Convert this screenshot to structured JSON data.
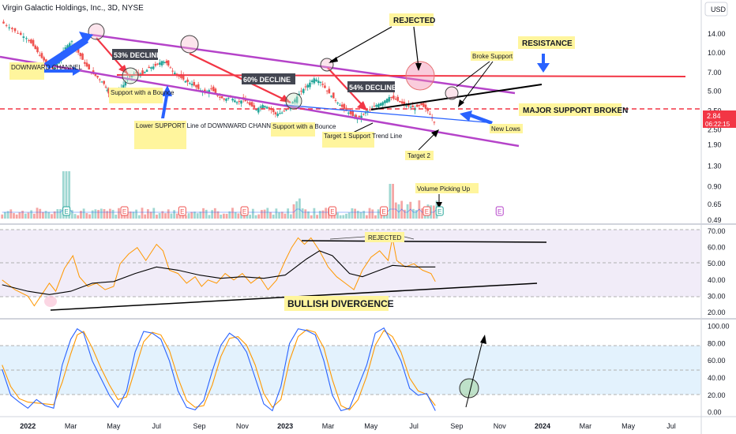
{
  "header": {
    "title": "Virgin Galactic Holdings, Inc., 3D, NYSE",
    "currency": "USD"
  },
  "price_tag": {
    "price": "2.84",
    "countdown": "06:22:15"
  },
  "colors": {
    "up": "#26a69a",
    "down": "#ef5350",
    "channel": "#b543c9",
    "resistance": "#f23645",
    "support_line": "#2962ff",
    "rsi": "#ff9800",
    "rsi_ma": "#000000",
    "stoch_k": "#2962ff",
    "stoch_d": "#ff9800",
    "annotation_bg": "#fff59d"
  },
  "annotations": {
    "downward_channel": "DOWNWARD CHANNEL",
    "support_bounce_1": "Support with a Bounce",
    "lower_support": "Lower SUPPORT Line of DOWNWARD CHANNEL",
    "support_bounce_2": "Support with a Bounce",
    "target1": "Target 1 Support Trend Line",
    "target2": "Target 2",
    "rejected_top": "REJECTED",
    "broke_support": "Broke Support",
    "resistance": "RESISTANCE",
    "major_support": "MAJOR SUPPORT BROKEN",
    "new_lows": "New Lows",
    "volume_picking": "Volume Picking Up",
    "decline1": "53% DECLINE",
    "decline2": "60% DECLINE",
    "decline3": "54% DECLINE",
    "rsi_rejected": "REJECTED",
    "bullish_div": "BULLISH DIVERGENCE",
    "earnings_marker": "E"
  },
  "chart_data": [
    {
      "name": "price",
      "type": "candlestick",
      "scale": "log",
      "x_unit": "month",
      "y_ticks": [
        14.0,
        10.0,
        7.0,
        5.0,
        3.5,
        2.5,
        1.9,
        1.3,
        0.9,
        0.65,
        0.49
      ],
      "x_ticks": [
        {
          "x": 0,
          "label": "2022"
        },
        {
          "x": 2,
          "label": "Mar"
        },
        {
          "x": 4,
          "label": "May"
        },
        {
          "x": 6,
          "label": "Jul"
        },
        {
          "x": 8,
          "label": "Sep"
        },
        {
          "x": 10,
          "label": "Nov"
        },
        {
          "x": 12,
          "label": "2023"
        },
        {
          "x": 14,
          "label": "Mar"
        },
        {
          "x": 16,
          "label": "May"
        },
        {
          "x": 18,
          "label": "Jul"
        },
        {
          "x": 20,
          "label": "Sep"
        },
        {
          "x": 22,
          "label": "Nov"
        },
        {
          "x": 24,
          "label": "2024"
        },
        {
          "x": 26,
          "label": "Mar"
        },
        {
          "x": 28,
          "label": "May"
        },
        {
          "x": 30,
          "label": "Jul"
        }
      ],
      "x_range": [
        -1.3,
        31.4
      ],
      "y_range": [
        0.47,
        20
      ],
      "close_points": [
        [
          -1.2,
          17.5
        ],
        [
          -0.8,
          15.8
        ],
        [
          -0.4,
          14.2
        ],
        [
          0.0,
          13.0
        ],
        [
          0.3,
          11.3
        ],
        [
          0.6,
          9.5
        ],
        [
          0.9,
          8.3
        ],
        [
          1.2,
          7.5
        ],
        [
          1.5,
          9.0
        ],
        [
          1.8,
          11.0
        ],
        [
          2.1,
          12.3
        ],
        [
          2.4,
          10.0
        ],
        [
          2.7,
          8.2
        ],
        [
          3.0,
          7.0
        ],
        [
          3.3,
          6.4
        ],
        [
          3.6,
          5.7
        ],
        [
          3.8,
          4.8
        ],
        [
          4.0,
          4.4
        ],
        [
          4.2,
          4.8
        ],
        [
          4.5,
          5.6
        ],
        [
          4.8,
          6.5
        ],
        [
          5.1,
          7.0
        ],
        [
          5.4,
          6.8
        ],
        [
          5.7,
          7.6
        ],
        [
          6.0,
          7.9
        ],
        [
          6.3,
          8.6
        ],
        [
          6.5,
          8.3
        ],
        [
          6.8,
          7.2
        ],
        [
          7.1,
          6.5
        ],
        [
          7.4,
          6.0
        ],
        [
          7.7,
          5.7
        ],
        [
          8.0,
          5.2
        ],
        [
          8.3,
          4.9
        ],
        [
          8.6,
          5.2
        ],
        [
          8.9,
          4.6
        ],
        [
          9.2,
          4.3
        ],
        [
          9.5,
          4.5
        ],
        [
          9.8,
          4.1
        ],
        [
          10.1,
          4.3
        ],
        [
          10.4,
          3.9
        ],
        [
          10.7,
          3.6
        ],
        [
          11.0,
          3.9
        ],
        [
          11.3,
          3.7
        ],
        [
          11.6,
          3.3
        ],
        [
          11.9,
          3.4
        ],
        [
          12.2,
          3.7
        ],
        [
          12.5,
          4.3
        ],
        [
          12.8,
          5.0
        ],
        [
          13.1,
          5.6
        ],
        [
          13.4,
          6.3
        ],
        [
          13.7,
          5.9
        ],
        [
          14.0,
          5.0
        ],
        [
          14.3,
          4.4
        ],
        [
          14.6,
          3.9
        ],
        [
          14.9,
          3.5
        ],
        [
          15.2,
          3.2
        ],
        [
          15.4,
          3.05
        ],
        [
          15.7,
          3.3
        ],
        [
          16.0,
          3.6
        ],
        [
          16.3,
          3.9
        ],
        [
          16.6,
          4.1
        ],
        [
          16.9,
          4.5
        ],
        [
          17.2,
          4.3
        ],
        [
          17.5,
          4.0
        ],
        [
          17.8,
          3.8
        ],
        [
          18.1,
          3.7
        ],
        [
          18.4,
          3.9
        ],
        [
          18.7,
          3.5
        ],
        [
          19.0,
          2.84
        ]
      ],
      "volume_note": "volume spike near Jun 2023"
    },
    {
      "name": "RSI",
      "type": "line",
      "y_ticks": [
        70.0,
        60.0,
        50.0,
        40.0,
        30.0,
        20.0
      ],
      "y_range": [
        17,
        73
      ],
      "band": [
        30,
        70
      ],
      "series_points": [
        [
          -1.2,
          40
        ],
        [
          -0.6,
          34
        ],
        [
          0.0,
          30
        ],
        [
          0.3,
          24
        ],
        [
          0.6,
          30
        ],
        [
          1.0,
          38
        ],
        [
          1.3,
          33
        ],
        [
          1.7,
          47
        ],
        [
          2.1,
          55
        ],
        [
          2.4,
          42
        ],
        [
          2.8,
          36
        ],
        [
          3.2,
          38
        ],
        [
          3.6,
          34
        ],
        [
          4.0,
          36
        ],
        [
          4.3,
          50
        ],
        [
          4.7,
          56
        ],
        [
          5.1,
          60
        ],
        [
          5.5,
          52
        ],
        [
          6.0,
          62
        ],
        [
          6.3,
          58
        ],
        [
          6.6,
          46
        ],
        [
          7.0,
          44
        ],
        [
          7.4,
          38
        ],
        [
          7.8,
          42
        ],
        [
          8.1,
          36
        ],
        [
          8.4,
          40
        ],
        [
          8.8,
          38
        ],
        [
          9.2,
          44
        ],
        [
          9.6,
          40
        ],
        [
          10.0,
          44
        ],
        [
          10.4,
          38
        ],
        [
          10.8,
          42
        ],
        [
          11.2,
          34
        ],
        [
          11.6,
          40
        ],
        [
          12.0,
          52
        ],
        [
          12.3,
          60
        ],
        [
          12.6,
          66
        ],
        [
          12.9,
          62
        ],
        [
          13.2,
          66
        ],
        [
          13.6,
          58
        ],
        [
          14.0,
          48
        ],
        [
          14.4,
          42
        ],
        [
          14.8,
          38
        ],
        [
          15.2,
          34
        ],
        [
          15.6,
          46
        ],
        [
          16.0,
          54
        ],
        [
          16.4,
          58
        ],
        [
          16.8,
          52
        ],
        [
          17.0,
          66
        ],
        [
          17.2,
          52
        ],
        [
          17.6,
          48
        ],
        [
          18.0,
          50
        ],
        [
          18.4,
          46
        ],
        [
          18.8,
          44
        ],
        [
          19.0,
          39
        ]
      ],
      "ma_points": [
        [
          -1.2,
          37
        ],
        [
          0.0,
          33
        ],
        [
          1.0,
          31
        ],
        [
          2.0,
          33
        ],
        [
          3.0,
          38
        ],
        [
          4.0,
          39
        ],
        [
          5.0,
          44
        ],
        [
          6.0,
          48
        ],
        [
          7.0,
          46
        ],
        [
          8.0,
          43
        ],
        [
          9.0,
          41
        ],
        [
          10.0,
          42
        ],
        [
          11.0,
          41
        ],
        [
          12.0,
          43
        ],
        [
          13.0,
          53
        ],
        [
          13.6,
          58
        ],
        [
          14.2,
          55
        ],
        [
          15.0,
          44
        ],
        [
          15.6,
          42
        ],
        [
          16.2,
          45
        ],
        [
          17.0,
          49
        ],
        [
          18.0,
          48
        ],
        [
          19.0,
          48
        ]
      ]
    },
    {
      "name": "Stochastic",
      "type": "line",
      "y_ticks": [
        100.0,
        80.0,
        60.0,
        40.0,
        20.0,
        0.0
      ],
      "y_range": [
        -3,
        105
      ],
      "band": [
        20,
        80
      ],
      "series": [
        {
          "name": "%K",
          "points": [
            [
              -1.2,
              50
            ],
            [
              -0.8,
              20
            ],
            [
              -0.4,
              12
            ],
            [
              0.0,
              5
            ],
            [
              0.4,
              15
            ],
            [
              0.8,
              8
            ],
            [
              1.2,
              5
            ],
            [
              1.6,
              55
            ],
            [
              2.0,
              85
            ],
            [
              2.3,
              97
            ],
            [
              2.6,
              92
            ],
            [
              3.0,
              60
            ],
            [
              3.4,
              40
            ],
            [
              3.8,
              20
            ],
            [
              4.2,
              6
            ],
            [
              4.6,
              25
            ],
            [
              5.0,
              70
            ],
            [
              5.4,
              94
            ],
            [
              5.8,
              92
            ],
            [
              6.2,
              85
            ],
            [
              6.6,
              60
            ],
            [
              7.0,
              25
            ],
            [
              7.4,
              6
            ],
            [
              7.8,
              3
            ],
            [
              8.2,
              14
            ],
            [
              8.6,
              48
            ],
            [
              9.0,
              78
            ],
            [
              9.4,
              92
            ],
            [
              9.8,
              85
            ],
            [
              10.2,
              70
            ],
            [
              10.6,
              40
            ],
            [
              11.0,
              10
            ],
            [
              11.4,
              2
            ],
            [
              11.8,
              30
            ],
            [
              12.2,
              80
            ],
            [
              12.6,
              97
            ],
            [
              13.0,
              95
            ],
            [
              13.4,
              90
            ],
            [
              13.8,
              60
            ],
            [
              14.2,
              20
            ],
            [
              14.6,
              2
            ],
            [
              15.0,
              5
            ],
            [
              15.4,
              30
            ],
            [
              15.8,
              55
            ],
            [
              16.2,
              92
            ],
            [
              16.6,
              98
            ],
            [
              17.0,
              80
            ],
            [
              17.4,
              60
            ],
            [
              17.8,
              28
            ],
            [
              18.2,
              20
            ],
            [
              18.6,
              22
            ],
            [
              19.0,
              2
            ]
          ]
        },
        {
          "name": "%D",
          "points": [
            [
              -1.2,
              55
            ],
            [
              -0.8,
              30
            ],
            [
              -0.4,
              16
            ],
            [
              0.0,
              12
            ],
            [
              0.4,
              11
            ],
            [
              0.8,
              10
            ],
            [
              1.2,
              9
            ],
            [
              1.6,
              35
            ],
            [
              2.0,
              68
            ],
            [
              2.3,
              90
            ],
            [
              2.6,
              94
            ],
            [
              3.0,
              75
            ],
            [
              3.4,
              52
            ],
            [
              3.8,
              32
            ],
            [
              4.2,
              15
            ],
            [
              4.6,
              18
            ],
            [
              5.0,
              50
            ],
            [
              5.4,
              82
            ],
            [
              5.8,
              93
            ],
            [
              6.2,
              90
            ],
            [
              6.6,
              72
            ],
            [
              7.0,
              40
            ],
            [
              7.4,
              14
            ],
            [
              7.8,
              6
            ],
            [
              8.2,
              8
            ],
            [
              8.6,
              32
            ],
            [
              9.0,
              65
            ],
            [
              9.4,
              86
            ],
            [
              9.8,
              88
            ],
            [
              10.2,
              78
            ],
            [
              10.6,
              55
            ],
            [
              11.0,
              22
            ],
            [
              11.4,
              6
            ],
            [
              11.8,
              15
            ],
            [
              12.2,
              60
            ],
            [
              12.6,
              88
            ],
            [
              13.0,
              96
            ],
            [
              13.4,
              93
            ],
            [
              13.8,
              75
            ],
            [
              14.2,
              38
            ],
            [
              14.6,
              8
            ],
            [
              15.0,
              3
            ],
            [
              15.4,
              15
            ],
            [
              15.8,
              42
            ],
            [
              16.2,
              78
            ],
            [
              16.6,
              95
            ],
            [
              17.0,
              88
            ],
            [
              17.4,
              70
            ],
            [
              17.8,
              40
            ],
            [
              18.2,
              25
            ],
            [
              18.6,
              21
            ],
            [
              19.0,
              8
            ]
          ]
        }
      ]
    }
  ]
}
